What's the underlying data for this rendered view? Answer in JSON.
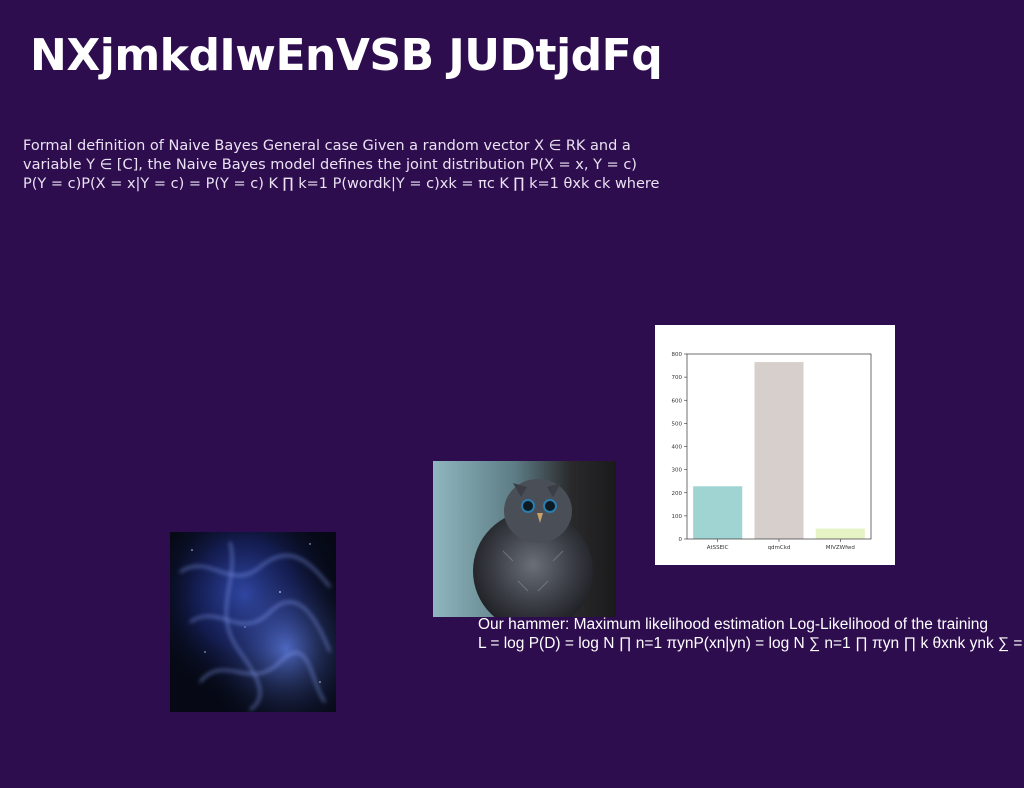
{
  "slide": {
    "title": "NXjmkdIwEnVSB JUDtjdFq",
    "paragraph1_lines": [
      "Formal definition of Naive Bayes General case Given a random vector X ∈ RK and a",
      "variable Y ∈ [C], the Naive Bayes model defines the joint distribution P(X = x, Y = c)",
      "P(Y = c)P(X = x|Y = c) = P(Y = c) K ∏ k=1 P(wordk|Y = c)xk = πc K ∏ k=1 θxk ck where"
    ],
    "paragraph2_lines": [
      "Our hammer: Maximum likelihood estimation Log-Likelihood of the training",
      "L = log P(D) = log N ∏ n=1 πynP(xn|yn) = log N ∑ n=1 ∏ πyn ∏ k θxnk ynk ∑ ="
    ]
  },
  "images": {
    "nebula": "blue-nebula-photo",
    "owl": "owl-chick-photo"
  },
  "chart_data": {
    "type": "bar",
    "categories": [
      "AtSSEIC",
      "qdmCkd",
      "MIVZWfwd"
    ],
    "values": [
      228,
      765,
      45
    ],
    "colors": [
      "#9fd4d2",
      "#d6cfcc",
      "#e6f3c4"
    ],
    "ylim": [
      0,
      800
    ],
    "yticks": [
      0,
      100,
      200,
      300,
      400,
      500,
      600,
      700,
      800
    ],
    "title": "",
    "xlabel": "",
    "ylabel": "",
    "grid": false
  }
}
